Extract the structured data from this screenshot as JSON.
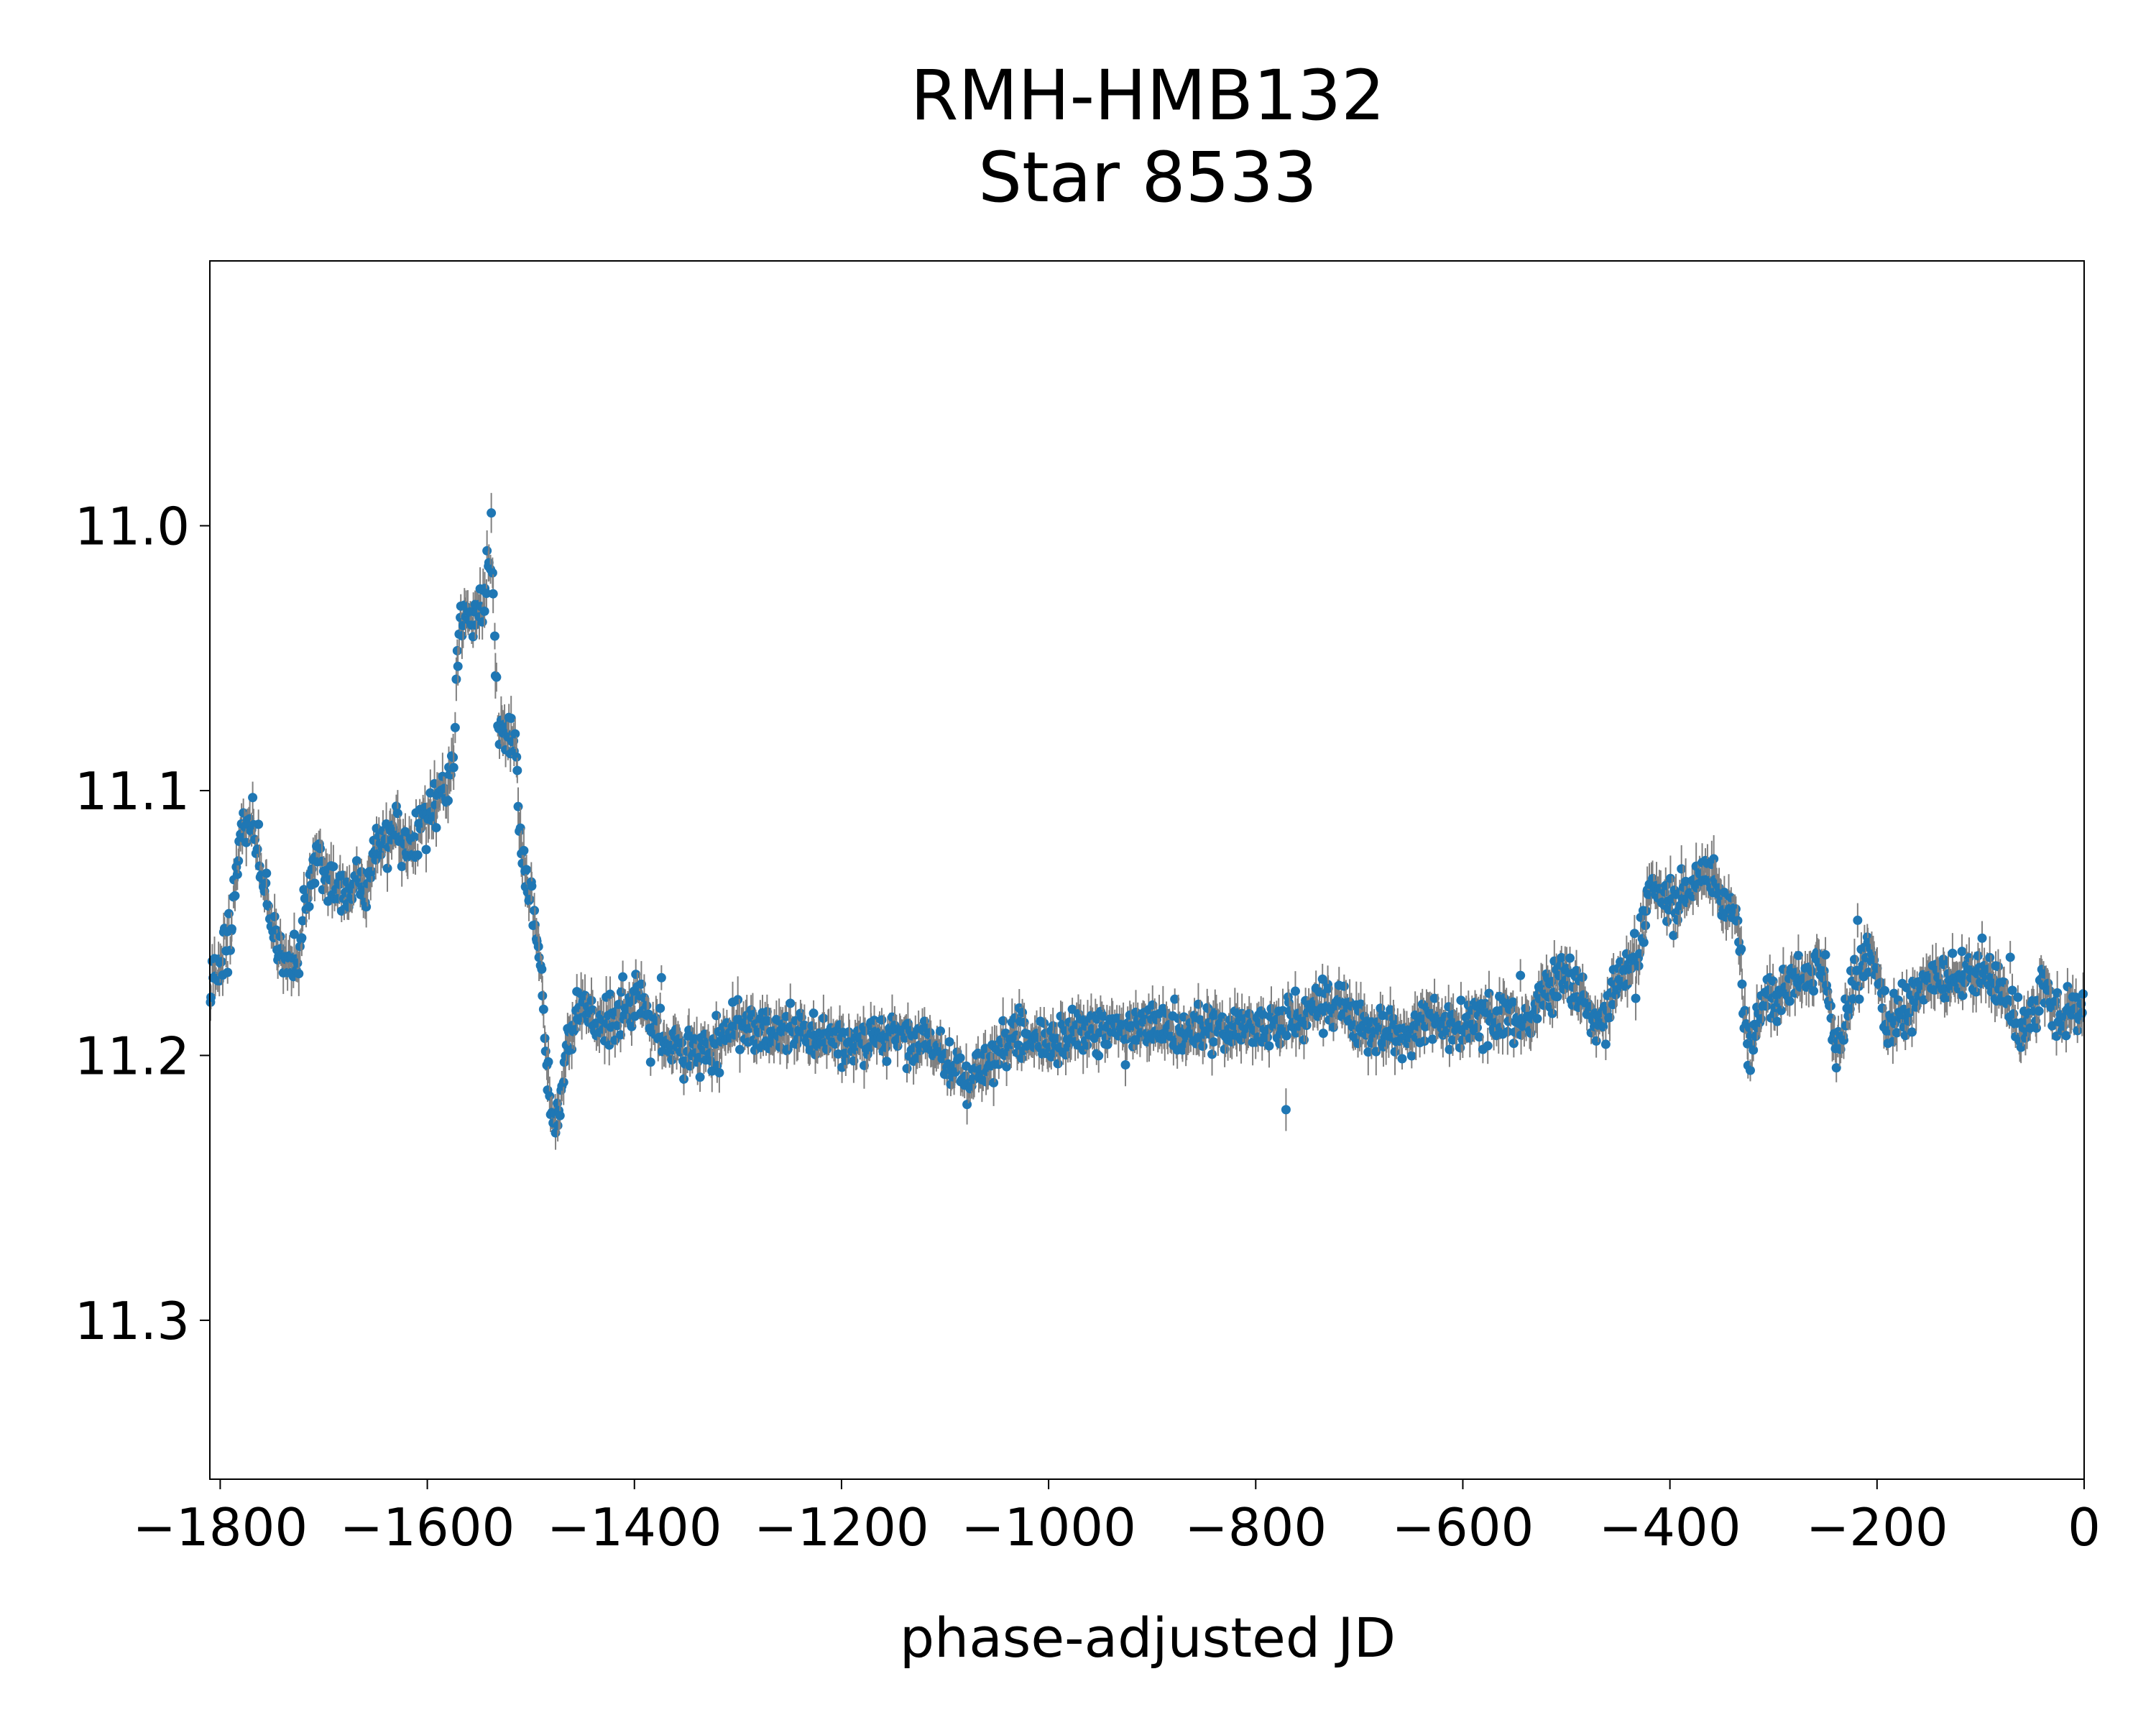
{
  "chart_data": {
    "type": "scatter",
    "title": [
      "RMH-HMB132",
      "Star 8533"
    ],
    "xlabel": "phase-adjusted JD",
    "ylabel": "",
    "xlim": [
      -1810,
      0
    ],
    "ylim": [
      11.36,
      10.9
    ],
    "y_inverted": true,
    "x_ticks": [
      -1800,
      -1600,
      -1400,
      -1200,
      -1000,
      -800,
      -600,
      -400,
      -200,
      0
    ],
    "x_tick_labels": [
      "−1800",
      "−1600",
      "−1400",
      "−1200",
      "−1000",
      "−800",
      "−600",
      "−400",
      "−200",
      "0"
    ],
    "y_ticks": [
      11.0,
      11.1,
      11.2,
      11.3
    ],
    "y_tick_labels": [
      "11.0",
      "11.1",
      "11.2",
      "11.3"
    ],
    "grid": false,
    "legend": "none",
    "colors": {
      "marker": "#1f77b4",
      "errorbar": "#808080"
    },
    "trend": [
      [
        -1810,
        11.175
      ],
      [
        -1790,
        11.155
      ],
      [
        -1780,
        11.12
      ],
      [
        -1770,
        11.11
      ],
      [
        -1760,
        11.13
      ],
      [
        -1750,
        11.15
      ],
      [
        -1740,
        11.165
      ],
      [
        -1725,
        11.165
      ],
      [
        -1715,
        11.135
      ],
      [
        -1705,
        11.125
      ],
      [
        -1690,
        11.135
      ],
      [
        -1675,
        11.14
      ],
      [
        -1660,
        11.135
      ],
      [
        -1645,
        11.12
      ],
      [
        -1630,
        11.115
      ],
      [
        -1615,
        11.12
      ],
      [
        -1600,
        11.11
      ],
      [
        -1585,
        11.1
      ],
      [
        -1575,
        11.09
      ],
      [
        -1568,
        11.035
      ],
      [
        -1555,
        11.035
      ],
      [
        -1545,
        11.03
      ],
      [
        -1538,
        11.005
      ],
      [
        -1532,
        11.075
      ],
      [
        -1515,
        11.08
      ],
      [
        -1508,
        11.13
      ],
      [
        -1500,
        11.14
      ],
      [
        -1490,
        11.17
      ],
      [
        -1482,
        11.22
      ],
      [
        -1475,
        11.23
      ],
      [
        -1465,
        11.195
      ],
      [
        -1450,
        11.18
      ],
      [
        -1420,
        11.19
      ],
      [
        -1395,
        11.175
      ],
      [
        -1380,
        11.19
      ],
      [
        -1360,
        11.2
      ],
      [
        -1340,
        11.2
      ],
      [
        -1300,
        11.19
      ],
      [
        -1250,
        11.19
      ],
      [
        -1200,
        11.195
      ],
      [
        -1150,
        11.19
      ],
      [
        -1100,
        11.2
      ],
      [
        -1080,
        11.21
      ],
      [
        -1060,
        11.205
      ],
      [
        -1030,
        11.19
      ],
      [
        -1000,
        11.195
      ],
      [
        -950,
        11.19
      ],
      [
        -900,
        11.19
      ],
      [
        -850,
        11.19
      ],
      [
        -800,
        11.19
      ],
      [
        -760,
        11.185
      ],
      [
        -720,
        11.18
      ],
      [
        -690,
        11.19
      ],
      [
        -660,
        11.195
      ],
      [
        -640,
        11.185
      ],
      [
        -600,
        11.19
      ],
      [
        -560,
        11.185
      ],
      [
        -540,
        11.19
      ],
      [
        -520,
        11.175
      ],
      [
        -500,
        11.17
      ],
      [
        -485,
        11.175
      ],
      [
        -470,
        11.19
      ],
      [
        -450,
        11.17
      ],
      [
        -430,
        11.16
      ],
      [
        -420,
        11.135
      ],
      [
        -400,
        11.145
      ],
      [
        -380,
        11.135
      ],
      [
        -365,
        11.13
      ],
      [
        -350,
        11.14
      ],
      [
        -335,
        11.15
      ],
      [
        -325,
        11.2
      ],
      [
        -310,
        11.18
      ],
      [
        -290,
        11.175
      ],
      [
        -270,
        11.17
      ],
      [
        -250,
        11.165
      ],
      [
        -240,
        11.2
      ],
      [
        -225,
        11.175
      ],
      [
        -205,
        11.16
      ],
      [
        -190,
        11.19
      ],
      [
        -170,
        11.18
      ],
      [
        -140,
        11.17
      ],
      [
        -100,
        11.17
      ],
      [
        -80,
        11.175
      ],
      [
        -60,
        11.19
      ],
      [
        -40,
        11.175
      ],
      [
        -20,
        11.185
      ],
      [
        0,
        11.185
      ]
    ]
  }
}
